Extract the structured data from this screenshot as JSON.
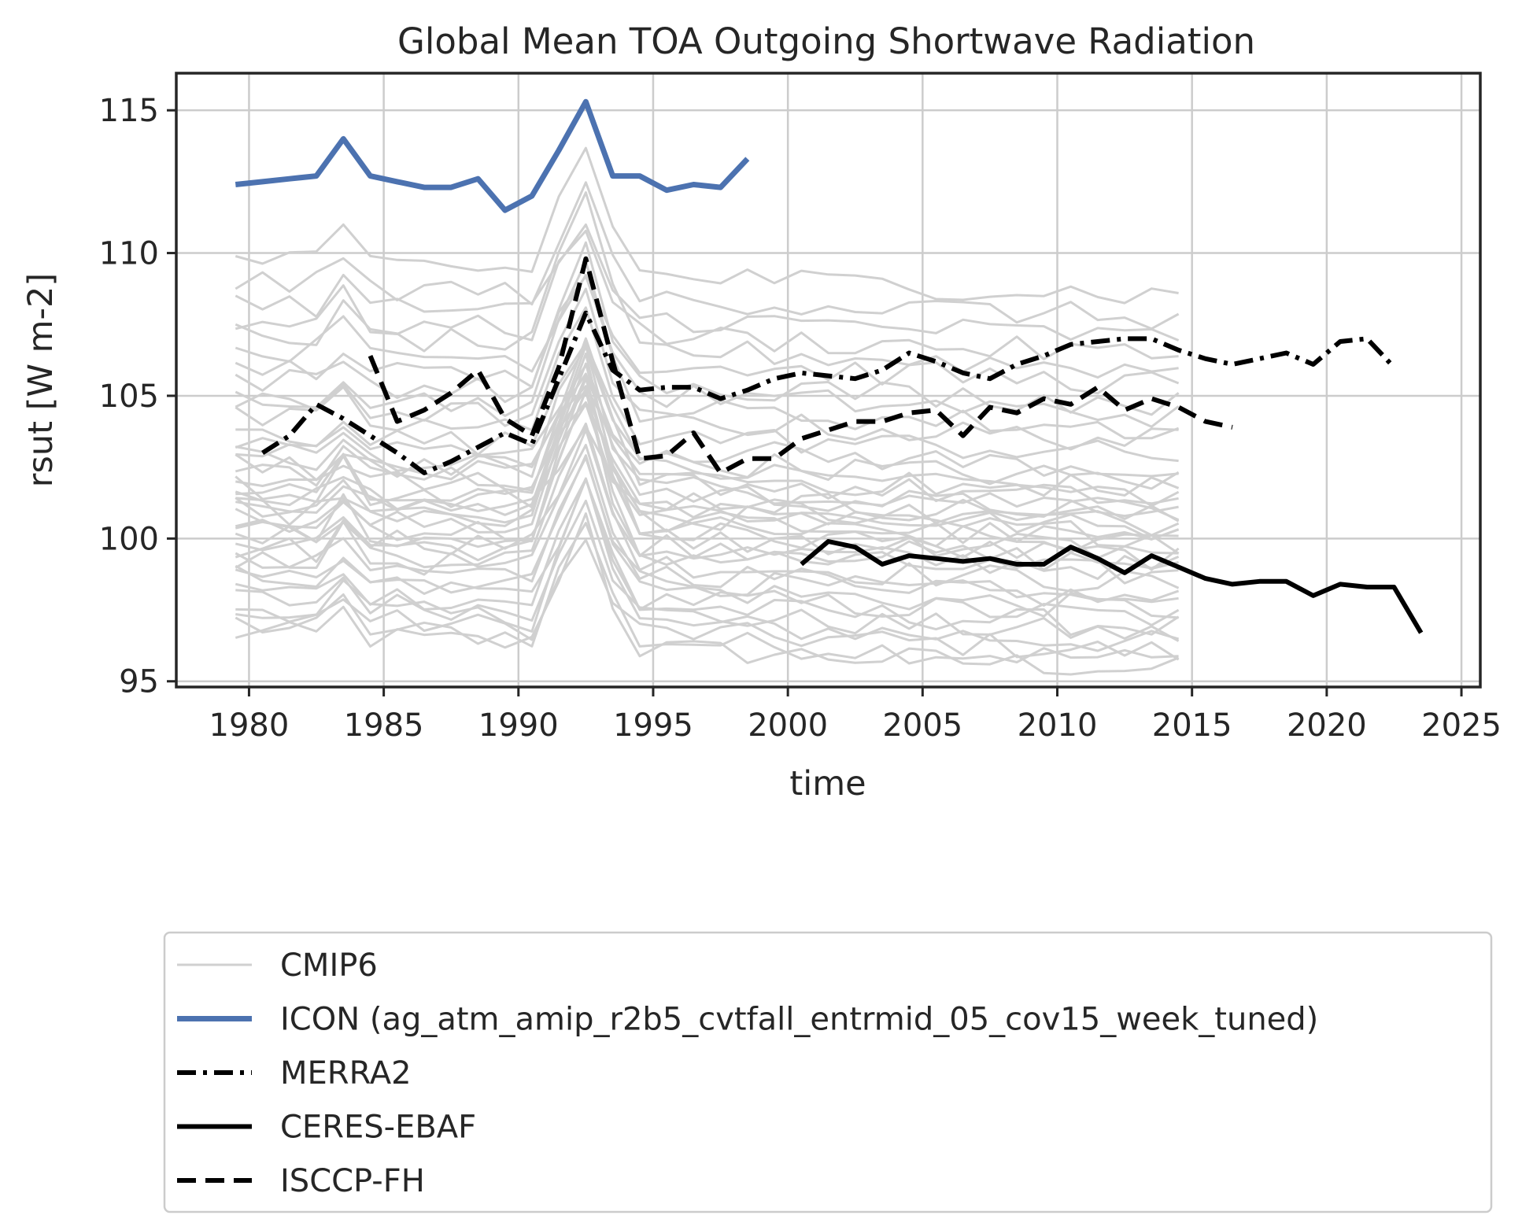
{
  "chart_data": {
    "type": "line",
    "title": "Global Mean TOA Outgoing Shortwave Radiation",
    "xlabel": "time",
    "ylabel": "rsut [W m-2]",
    "xlim": [
      1977.3,
      2025.7
    ],
    "ylim": [
      94.8,
      116.3
    ],
    "xticks": [
      1980,
      1985,
      1990,
      1995,
      2000,
      2005,
      2010,
      2015,
      2020,
      2025
    ],
    "yticks": [
      95,
      100,
      105,
      110,
      115
    ],
    "grid": true,
    "legend_position": "below",
    "series": [
      {
        "name": "ICON (ag_atm_amip_r2b5_cvtfall_entrmid_05_cov15_week_tuned)",
        "color": "#4c72b0",
        "style": "solid",
        "width": 7,
        "x": [
          1979.5,
          1980.5,
          1981.5,
          1982.5,
          1983.5,
          1984.5,
          1985.5,
          1986.5,
          1987.5,
          1988.5,
          1989.5,
          1990.5,
          1991.5,
          1992.5,
          1993.5,
          1994.5,
          1995.5,
          1996.5,
          1997.5,
          1998.5
        ],
        "y": [
          112.4,
          112.5,
          112.6,
          112.7,
          114.0,
          112.7,
          112.5,
          112.3,
          112.3,
          112.6,
          111.5,
          112.0,
          113.6,
          115.3,
          112.7,
          112.7,
          112.2,
          112.4,
          112.3,
          113.3
        ]
      },
      {
        "name": "MERRA2",
        "color": "#000000",
        "style": "dashdot",
        "width": 6,
        "x": [
          1980.5,
          1981.5,
          1982.5,
          1983.5,
          1984.5,
          1985.5,
          1986.5,
          1987.5,
          1988.5,
          1989.5,
          1990.5,
          1991.5,
          1992.5,
          1993.5,
          1994.5,
          1995.5,
          1996.5,
          1997.5,
          1998.5,
          1999.5,
          2000.5,
          2001.5,
          2002.5,
          2003.5,
          2004.5,
          2005.5,
          2006.5,
          2007.5,
          2008.5,
          2009.5,
          2010.5,
          2011.5,
          2012.5,
          2013.5,
          2014.5,
          2015.5,
          2016.5,
          2017.5,
          2018.5,
          2019.5,
          2020.5,
          2021.5,
          2022.5
        ],
        "y": [
          103.0,
          103.6,
          104.7,
          104.2,
          103.6,
          103.0,
          102.3,
          102.7,
          103.2,
          103.7,
          103.3,
          105.6,
          107.9,
          105.9,
          105.2,
          105.3,
          105.3,
          104.9,
          105.2,
          105.6,
          105.8,
          105.7,
          105.6,
          105.9,
          106.5,
          106.2,
          105.8,
          105.6,
          106.1,
          106.4,
          106.8,
          106.9,
          107.0,
          107.0,
          106.6,
          106.3,
          106.1,
          106.3,
          106.5,
          106.1,
          106.9,
          107.0,
          106.0
        ]
      },
      {
        "name": "CERES-EBAF",
        "color": "#000000",
        "style": "solid",
        "width": 6,
        "x": [
          2000.5,
          2001.5,
          2002.5,
          2003.5,
          2004.5,
          2005.5,
          2006.5,
          2007.5,
          2008.5,
          2009.5,
          2010.5,
          2011.5,
          2012.5,
          2013.5,
          2014.5,
          2015.5,
          2016.5,
          2017.5,
          2018.5,
          2019.5,
          2020.5,
          2021.5,
          2022.5,
          2023.5
        ],
        "y": [
          99.1,
          99.9,
          99.7,
          99.1,
          99.4,
          99.3,
          99.2,
          99.3,
          99.1,
          99.1,
          99.7,
          99.3,
          98.8,
          99.4,
          99.0,
          98.6,
          98.4,
          98.5,
          98.5,
          98.0,
          98.4,
          98.3,
          98.3,
          96.7
        ]
      },
      {
        "name": "ISCCP-FH",
        "color": "#000000",
        "style": "dashed",
        "width": 6,
        "x": [
          1984.5,
          1985.5,
          1986.5,
          1987.5,
          1988.5,
          1989.5,
          1990.5,
          1991.5,
          1992.5,
          1993.5,
          1994.5,
          1995.5,
          1996.5,
          1997.5,
          1998.5,
          1999.5,
          2000.5,
          2001.5,
          2002.5,
          2003.5,
          2004.5,
          2005.5,
          2006.5,
          2007.5,
          2008.5,
          2009.5,
          2010.5,
          2011.5,
          2012.5,
          2013.5,
          2014.5,
          2015.5,
          2016.5
        ],
        "y": [
          106.4,
          104.1,
          104.5,
          105.1,
          105.9,
          104.2,
          103.6,
          106.0,
          109.8,
          106.2,
          102.8,
          102.9,
          103.7,
          102.3,
          102.8,
          102.8,
          103.5,
          103.8,
          104.1,
          104.1,
          104.4,
          104.5,
          103.6,
          104.6,
          104.4,
          104.9,
          104.7,
          105.3,
          104.5,
          104.9,
          104.6,
          104.1,
          103.9
        ]
      }
    ],
    "cmip6": {
      "name": "CMIP6",
      "color": "#d0d0d0",
      "x_start": 1979.5,
      "x_end": 2014.5,
      "bases": [
        96.7,
        97.0,
        97.3,
        97.6,
        97.9,
        98.2,
        98.5,
        98.8,
        99.1,
        99.4,
        99.7,
        100.0,
        100.2,
        100.4,
        100.6,
        100.8,
        101.0,
        101.2,
        101.4,
        101.6,
        101.8,
        102.0,
        102.2,
        102.4,
        102.6,
        102.8,
        103.0,
        103.3,
        103.7,
        104.2,
        104.7,
        105.1,
        105.6,
        106.0,
        106.7,
        107.2,
        107.7,
        108.3,
        109.0,
        109.8
      ],
      "volcano_spike": 4.2,
      "trend_total": -1.3,
      "noise_amplitude": 0.45,
      "spike_jitter": 2.5
    }
  },
  "legend": {
    "items": [
      {
        "label": "CMIP6",
        "color": "#d0d0d0",
        "style": "solid",
        "width": 3
      },
      {
        "label": "ICON (ag_atm_amip_r2b5_cvtfall_entrmid_05_cov15_week_tuned)",
        "color": "#4c72b0",
        "style": "solid",
        "width": 7
      },
      {
        "label": "MERRA2",
        "color": "#000000",
        "style": "dashdot",
        "width": 6
      },
      {
        "label": "CERES-EBAF",
        "color": "#000000",
        "style": "solid",
        "width": 6
      },
      {
        "label": "ISCCP-FH",
        "color": "#000000",
        "style": "dashed",
        "width": 6
      }
    ]
  }
}
